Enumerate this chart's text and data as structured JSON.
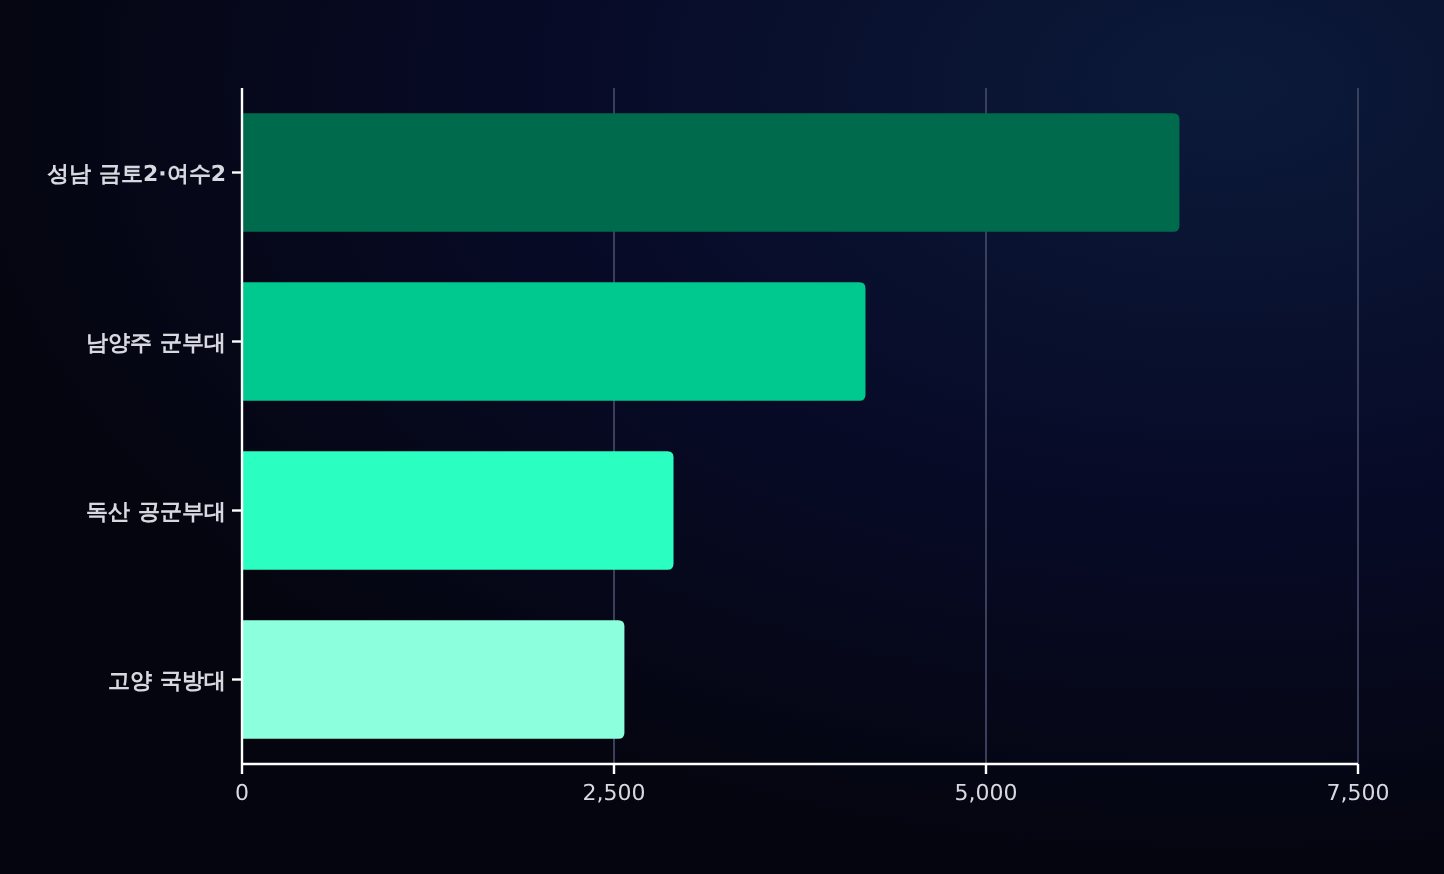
{
  "chart_data": {
    "type": "bar",
    "orientation": "horizontal",
    "categories": [
      "성남 금토2·여수2",
      "남양주 군부대",
      "독산 공군부대",
      "고양 국방대"
    ],
    "values": [
      6300,
      4190,
      2900,
      2570
    ],
    "colors": [
      "#006b4c",
      "#00c98f",
      "#2affc1",
      "#8cffdd"
    ],
    "xlim": [
      0,
      7500
    ],
    "xticks": [
      {
        "value": 0,
        "label": "0"
      },
      {
        "value": 2500,
        "label": "2,500"
      },
      {
        "value": 5000,
        "label": "5,000"
      },
      {
        "value": 7500,
        "label": "7,500"
      }
    ],
    "grid": "x"
  }
}
